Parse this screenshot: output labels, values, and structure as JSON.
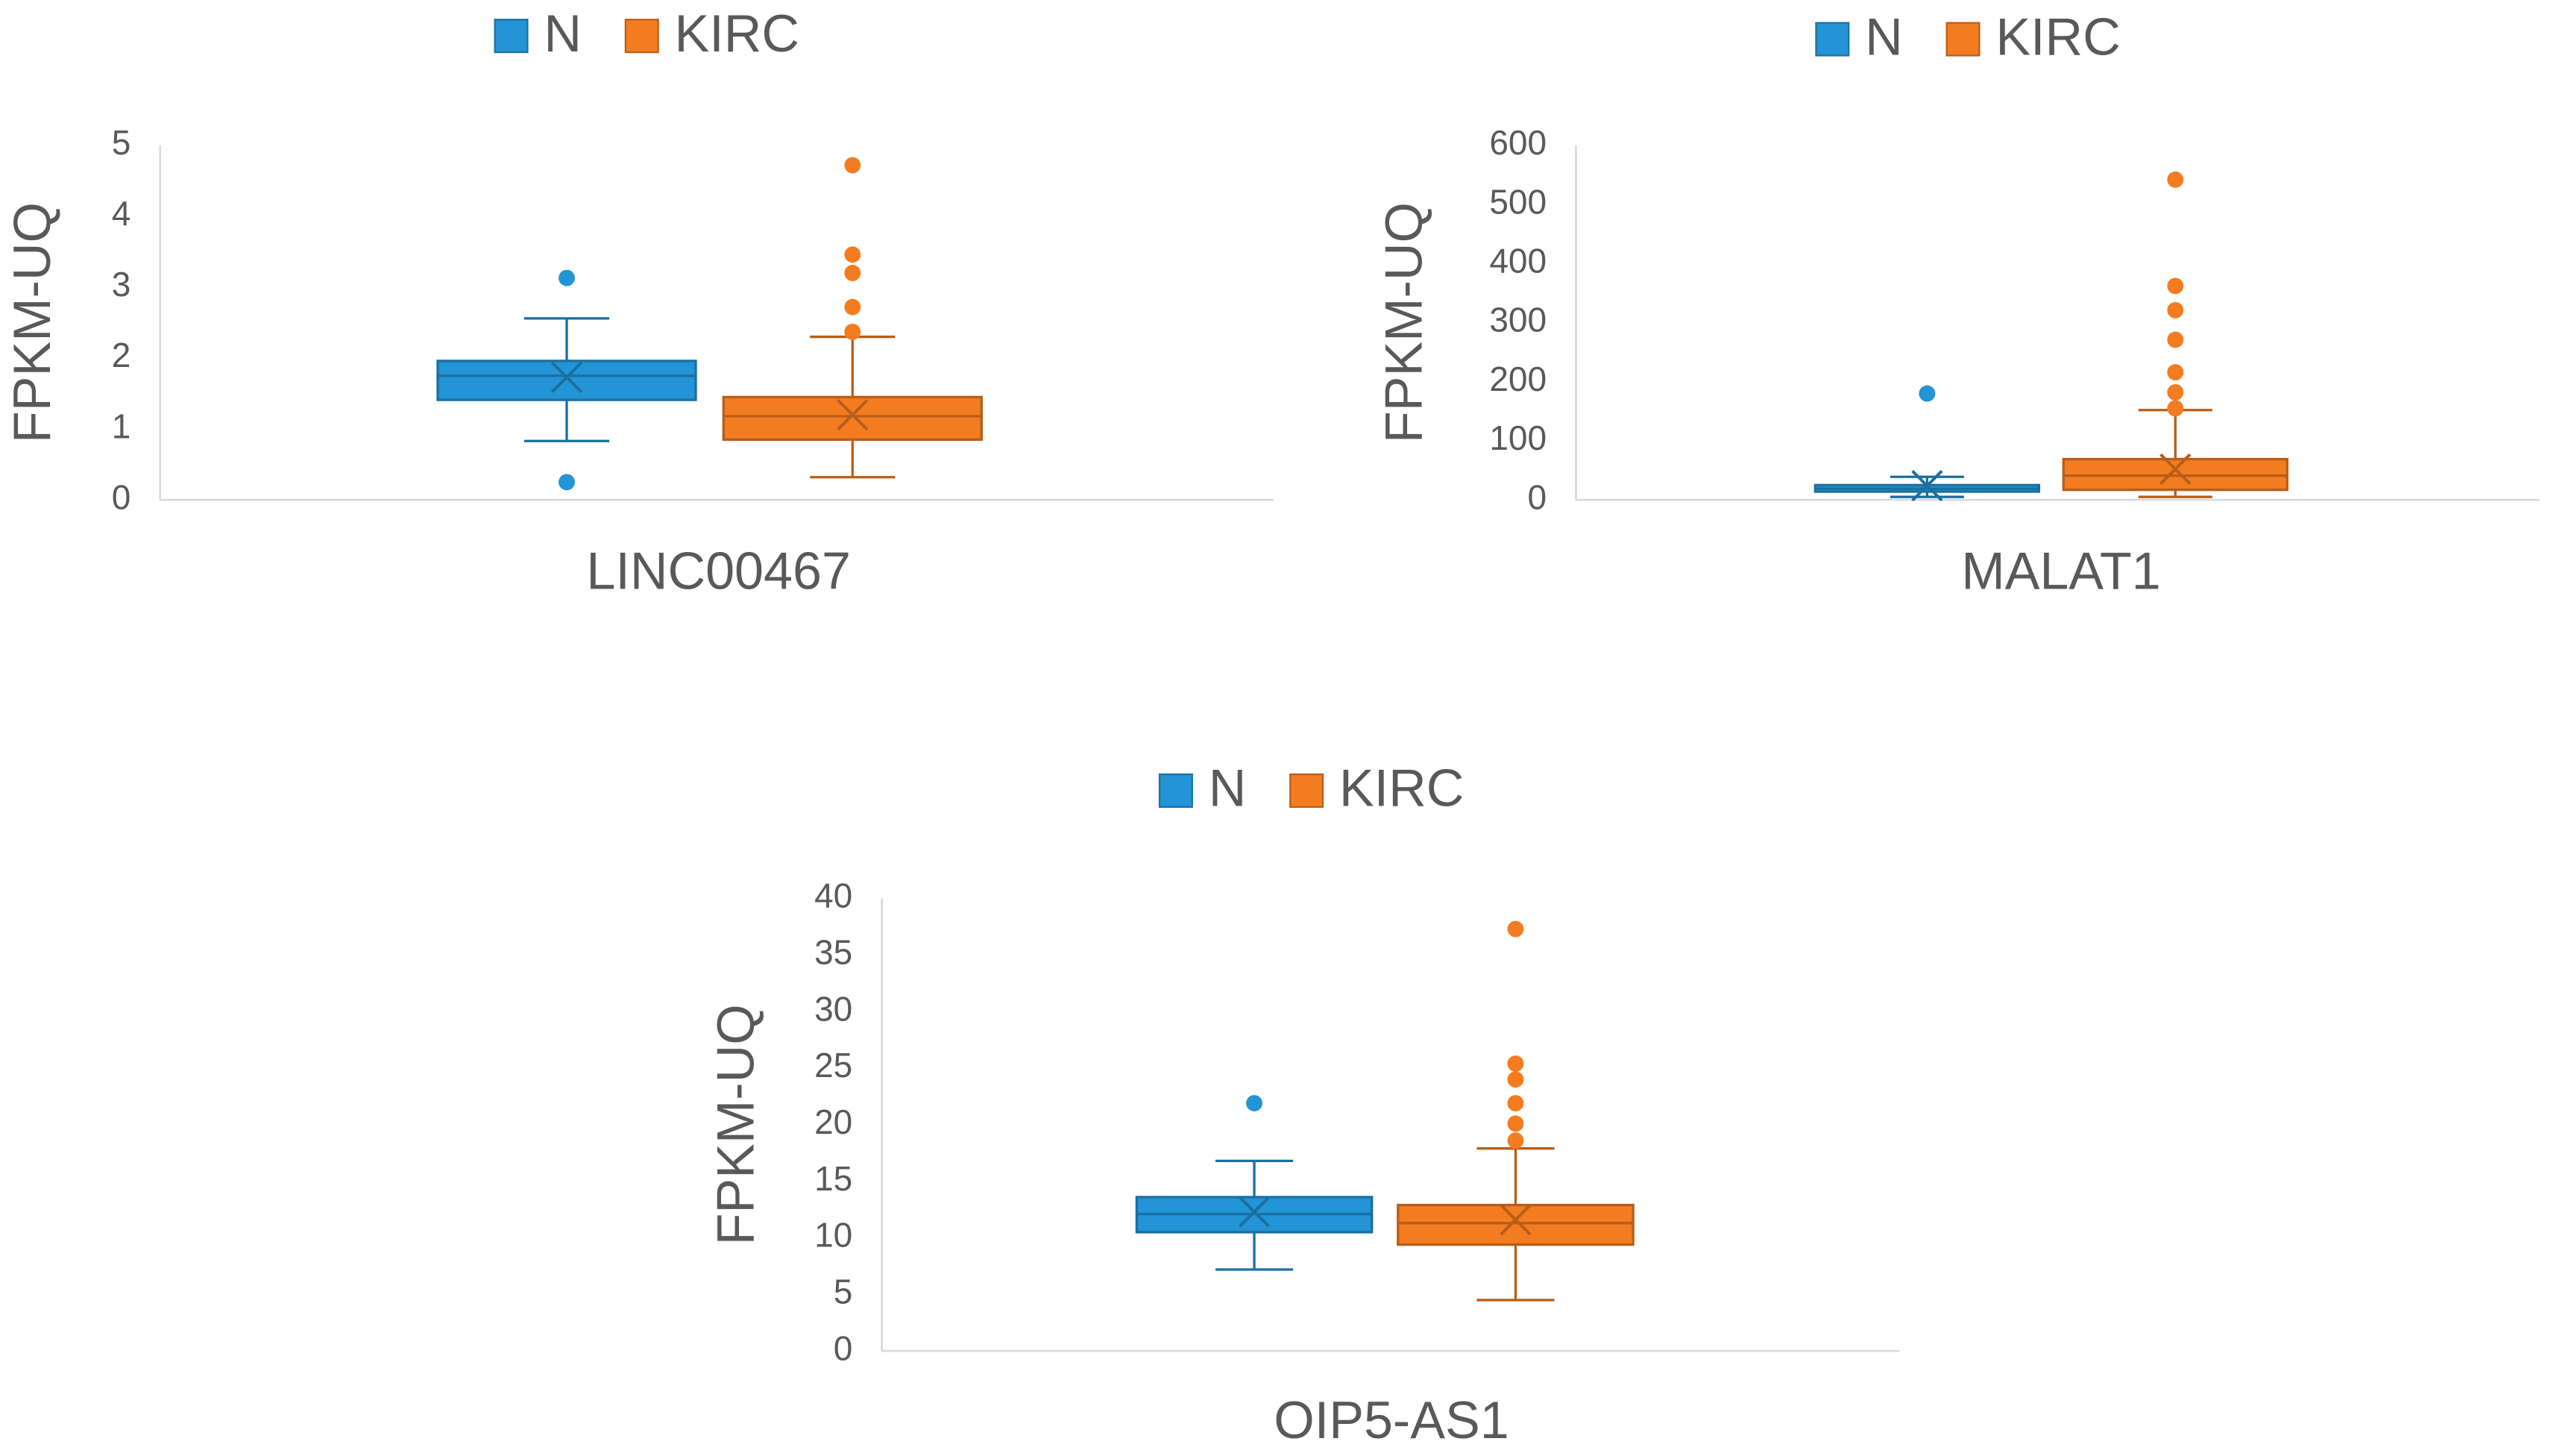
{
  "chart_data": [
    {
      "type": "box",
      "legend": "top",
      "ylabel": "FPKM-UQ",
      "categories": [
        "LINC00467"
      ],
      "ylim": [
        0,
        5
      ],
      "yticks": [
        0,
        1,
        2,
        3,
        4,
        5
      ],
      "series": [
        {
          "name": "N",
          "color": "#2394d5",
          "min": 0.83,
          "q1": 1.41,
          "median": 1.75,
          "q3": 1.96,
          "max": 2.56,
          "mean": 1.73,
          "outliers": [
            3.13,
            0.25
          ]
        },
        {
          "name": "KIRC",
          "color": "#f47c20",
          "min": 0.32,
          "q1": 0.85,
          "median": 1.18,
          "q3": 1.45,
          "max": 2.3,
          "mean": 1.2,
          "outliers": [
            4.72,
            3.46,
            3.2,
            2.72,
            2.37
          ]
        }
      ]
    },
    {
      "type": "box",
      "legend": "top",
      "ylabel": "FPKM-UQ",
      "categories": [
        "MALAT1"
      ],
      "ylim": [
        0,
        600
      ],
      "yticks": [
        0,
        100,
        200,
        300,
        400,
        500,
        600
      ],
      "series": [
        {
          "name": "N",
          "color": "#2394d5",
          "min": 5,
          "q1": 14,
          "median": 19,
          "q3": 25,
          "max": 39,
          "mean": 24,
          "outliers": [
            180
          ]
        },
        {
          "name": "KIRC",
          "color": "#f47c20",
          "min": 5,
          "q1": 17,
          "median": 41,
          "q3": 69,
          "max": 152,
          "mean": 52,
          "outliers": [
            542,
            362,
            321,
            271,
            216,
            182,
            155
          ]
        }
      ]
    },
    {
      "type": "box",
      "legend": "top",
      "ylabel": "FPKM-UQ",
      "categories": [
        "OIP5-AS1"
      ],
      "ylim": [
        0,
        40
      ],
      "yticks": [
        0,
        5,
        10,
        15,
        20,
        25,
        30,
        35,
        40
      ],
      "series": [
        {
          "name": "N",
          "color": "#2394d5",
          "min": 7.2,
          "q1": 10.5,
          "median": 12.1,
          "q3": 13.6,
          "max": 16.8,
          "mean": 12.3,
          "outliers": [
            21.9
          ]
        },
        {
          "name": "KIRC",
          "color": "#f47c20",
          "min": 4.5,
          "q1": 9.4,
          "median": 11.3,
          "q3": 12.9,
          "max": 17.9,
          "mean": 11.6,
          "outliers": [
            37.3,
            25.4,
            24,
            21.9,
            20.1,
            18.6
          ]
        }
      ]
    }
  ]
}
